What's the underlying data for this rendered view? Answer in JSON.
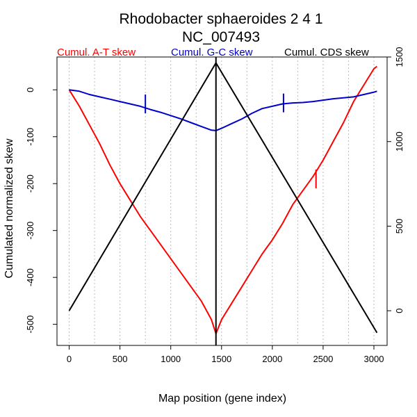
{
  "chart_data": {
    "type": "line",
    "title": "Rhodobacter sphaeroides 2 4 1",
    "subtitle": "NC_007493",
    "xlabel": "Map position (gene index)",
    "ylabel": "Cumulated normalized skew",
    "xlim": [
      -120,
      3130
    ],
    "ylim": [
      -545,
      70
    ],
    "y2lim": [
      -205,
      1500
    ],
    "x_ticks": [
      0,
      500,
      1000,
      1500,
      2000,
      2500,
      3000
    ],
    "y_ticks": [
      0,
      -100,
      -200,
      -300,
      -400,
      -500
    ],
    "y2_ticks": [
      0,
      500,
      1000,
      1500
    ],
    "x_tick_labels": [
      "0",
      "500",
      "1000",
      "1500",
      "2000",
      "2500",
      "3000"
    ],
    "y_tick_labels": [
      "0",
      "-100",
      "-200",
      "-300",
      "-400",
      "-500"
    ],
    "y2_tick_labels": [
      "0",
      "500",
      "1000",
      "1500"
    ],
    "grid": "vertical dotted",
    "legend_placement": "top",
    "vline_x": 1445,
    "series": [
      {
        "name": "Cumul. A-T skew",
        "color": "#ff0000",
        "axis": "left",
        "x": [
          0,
          100,
          200,
          300,
          400,
          500,
          600,
          700,
          800,
          900,
          1000,
          1100,
          1200,
          1300,
          1400,
          1445,
          1500,
          1600,
          1700,
          1800,
          1900,
          2000,
          2100,
          2200,
          2300,
          2400,
          2500,
          2600,
          2700,
          2800,
          2900,
          3000,
          3030
        ],
        "y": [
          0,
          -35,
          -75,
          -115,
          -160,
          -200,
          -235,
          -270,
          -300,
          -330,
          -360,
          -390,
          -420,
          -450,
          -490,
          -520,
          -490,
          -455,
          -420,
          -385,
          -350,
          -320,
          -285,
          -245,
          -215,
          -185,
          -150,
          -110,
          -70,
          -25,
          10,
          45,
          50
        ],
        "markers": [
          {
            "x": 2430,
            "y": -190,
            "height": 40
          }
        ]
      },
      {
        "name": "Cumul. G-C skew",
        "color": "#0000cc",
        "axis": "left",
        "x": [
          0,
          100,
          200,
          300,
          400,
          500,
          600,
          700,
          800,
          900,
          1000,
          1100,
          1200,
          1300,
          1400,
          1445,
          1500,
          1600,
          1700,
          1800,
          1900,
          2000,
          2100,
          2200,
          2300,
          2400,
          2500,
          2600,
          2700,
          2800,
          2900,
          3000,
          3030
        ],
        "y": [
          0,
          -3,
          -10,
          -15,
          -20,
          -25,
          -30,
          -35,
          -42,
          -48,
          -55,
          -62,
          -70,
          -78,
          -86,
          -87,
          -82,
          -72,
          -62,
          -50,
          -40,
          -35,
          -30,
          -28,
          -27,
          -25,
          -22,
          -19,
          -17,
          -15,
          -10,
          -5,
          -3
        ],
        "markers": [
          {
            "x": 750,
            "y": -30,
            "height": 40
          },
          {
            "x": 2110,
            "y": -28,
            "height": 40
          }
        ]
      },
      {
        "name": "Cumul. CDS skew",
        "color": "#000000",
        "axis": "right",
        "x": [
          0,
          1445,
          3030
        ],
        "y": [
          0,
          1465,
          -130
        ]
      }
    ]
  }
}
